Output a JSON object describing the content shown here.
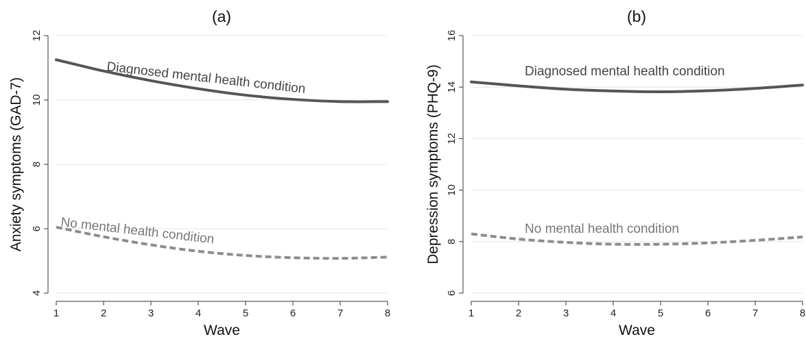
{
  "chart_data": [
    {
      "type": "line",
      "title": "(a)",
      "xlabel": "Wave",
      "ylabel": "Anxiety symptoms (GAD-7)",
      "x": [
        1,
        2,
        3,
        4,
        5,
        6,
        7,
        8
      ],
      "xlim": [
        1,
        8
      ],
      "ylim": [
        4,
        12
      ],
      "yticks": [
        4,
        6,
        8,
        10,
        12
      ],
      "grid": true,
      "series": [
        {
          "name": "Diagnosed mental health condition",
          "color": "#555555",
          "style": "solid",
          "values": [
            11.25,
            10.9,
            10.6,
            10.35,
            10.15,
            10.02,
            9.95,
            9.95
          ]
        },
        {
          "name": "No mental health condition",
          "color": "#8c8c8c",
          "style": "dashed",
          "values": [
            6.05,
            5.75,
            5.5,
            5.3,
            5.17,
            5.1,
            5.08,
            5.12
          ]
        }
      ]
    },
    {
      "type": "line",
      "title": "(b)",
      "xlabel": "Wave",
      "ylabel": "Depression symptoms (PHQ-9)",
      "x": [
        1,
        2,
        3,
        4,
        5,
        6,
        7,
        8
      ],
      "xlim": [
        1,
        8
      ],
      "ylim": [
        6,
        16
      ],
      "yticks": [
        6,
        8,
        10,
        12,
        14,
        16
      ],
      "grid": true,
      "series": [
        {
          "name": "Diagnosed mental health condition",
          "color": "#555555",
          "style": "solid",
          "values": [
            14.2,
            14.05,
            13.92,
            13.85,
            13.82,
            13.86,
            13.95,
            14.08
          ]
        },
        {
          "name": "No mental health condition",
          "color": "#8c8c8c",
          "style": "dashed",
          "values": [
            8.3,
            8.1,
            7.97,
            7.9,
            7.9,
            7.95,
            8.05,
            8.18
          ]
        }
      ]
    }
  ]
}
